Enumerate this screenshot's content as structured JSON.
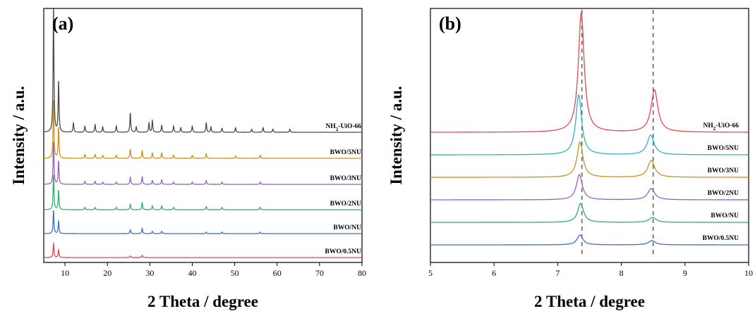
{
  "chart_data": [
    {
      "type": "line",
      "panel_label": "(a)",
      "xlabel": "2 Theta / degree",
      "ylabel": "Intensity / a.u.",
      "xlim": [
        5,
        80
      ],
      "xticks": [
        10,
        20,
        30,
        40,
        50,
        60,
        70,
        80
      ],
      "yticks_shown": false,
      "grid": false,
      "legend": "inline labels at right end of each trace",
      "series": [
        {
          "name": "BWO/0.5NU",
          "color": "#e0464e",
          "peaks": [
            [
              7.3,
              18
            ],
            [
              8.5,
              10
            ],
            [
              25.4,
              2
            ],
            [
              28.2,
              3
            ]
          ]
        },
        {
          "name": "BWO/NU",
          "color": "#3f6fbf",
          "peaks": [
            [
              7.3,
              30
            ],
            [
              8.5,
              16
            ],
            [
              25.4,
              5
            ],
            [
              28.2,
              7
            ],
            [
              30.6,
              3
            ],
            [
              32.8,
              3
            ],
            [
              43.3,
              2
            ],
            [
              47.0,
              2
            ],
            [
              56.0,
              2
            ]
          ]
        },
        {
          "name": "BWO/2NU",
          "color": "#2fae6e",
          "peaks": [
            [
              7.3,
              45
            ],
            [
              8.5,
              25
            ],
            [
              14.7,
              3
            ],
            [
              17.1,
              3
            ],
            [
              22.1,
              3
            ],
            [
              25.4,
              7
            ],
            [
              28.2,
              9
            ],
            [
              30.6,
              5
            ],
            [
              32.8,
              5
            ],
            [
              35.6,
              3
            ],
            [
              43.3,
              4
            ],
            [
              47.0,
              3
            ],
            [
              56.0,
              3
            ]
          ]
        },
        {
          "name": "BWO/3NU",
          "color": "#9a5fc0",
          "peaks": [
            [
              7.3,
              55
            ],
            [
              8.5,
              30
            ],
            [
              14.7,
              4
            ],
            [
              17.1,
              4
            ],
            [
              18.9,
              3
            ],
            [
              22.1,
              3
            ],
            [
              25.4,
              9
            ],
            [
              28.2,
              10
            ],
            [
              30.6,
              5
            ],
            [
              32.8,
              6
            ],
            [
              35.6,
              3
            ],
            [
              40.0,
              3
            ],
            [
              43.3,
              5
            ],
            [
              47.0,
              3
            ],
            [
              56.0,
              3
            ]
          ]
        },
        {
          "name": "BWO/5NU",
          "color": "#c8901c",
          "peaks": [
            [
              7.3,
              75
            ],
            [
              8.5,
              40
            ],
            [
              14.7,
              5
            ],
            [
              17.1,
              5
            ],
            [
              18.9,
              4
            ],
            [
              22.1,
              4
            ],
            [
              25.4,
              12
            ],
            [
              28.2,
              10
            ],
            [
              30.6,
              7
            ],
            [
              32.8,
              7
            ],
            [
              35.6,
              4
            ],
            [
              40.0,
              4
            ],
            [
              43.3,
              6
            ],
            [
              50.2,
              3
            ],
            [
              56.0,
              4
            ]
          ]
        },
        {
          "name": "NH2-UiO-66",
          "color": "#4a4a4a",
          "peaks": [
            [
              7.3,
              160
            ],
            [
              8.5,
              65
            ],
            [
              12.0,
              12
            ],
            [
              14.7,
              8
            ],
            [
              17.1,
              10
            ],
            [
              18.9,
              7
            ],
            [
              22.1,
              8
            ],
            [
              25.4,
              25
            ],
            [
              26.8,
              7
            ],
            [
              29.8,
              12
            ],
            [
              30.6,
              15
            ],
            [
              32.8,
              9
            ],
            [
              35.6,
              8
            ],
            [
              37.3,
              6
            ],
            [
              40.0,
              8
            ],
            [
              43.3,
              12
            ],
            [
              44.4,
              7
            ],
            [
              47.0,
              5
            ],
            [
              50.2,
              6
            ],
            [
              54.0,
              4
            ],
            [
              56.7,
              6
            ],
            [
              59.0,
              4
            ],
            [
              63.0,
              4
            ]
          ]
        }
      ]
    },
    {
      "type": "line",
      "panel_label": "(b)",
      "xlabel": "2 Theta / degree",
      "ylabel": "Intensity / a.u.",
      "xlim": [
        5,
        10
      ],
      "xticks": [
        5,
        6,
        7,
        8,
        9,
        10
      ],
      "yticks_shown": false,
      "grid": false,
      "reference_lines_x": [
        7.38,
        8.5
      ],
      "legend": "inline labels at right end of each trace",
      "series": [
        {
          "name": "BWO/0.5NU",
          "color": "#3f6fbf",
          "peaks": [
            [
              7.35,
              14,
              0.055
            ],
            [
              8.48,
              6,
              0.065
            ]
          ]
        },
        {
          "name": "BWO/NU",
          "color": "#2fae6e",
          "peaks": [
            [
              7.36,
              27,
              0.055
            ],
            [
              8.49,
              7,
              0.065
            ]
          ]
        },
        {
          "name": "BWO/2NU",
          "color": "#9a5fc0",
          "peaks": [
            [
              7.34,
              36,
              0.055
            ],
            [
              8.47,
              16,
              0.065
            ]
          ]
        },
        {
          "name": "BWO/3NU",
          "color": "#c8901c",
          "peaks": [
            [
              7.35,
              50,
              0.055
            ],
            [
              8.47,
              24,
              0.065
            ]
          ]
        },
        {
          "name": "BWO/5NU",
          "color": "#2bb7c2",
          "peaks": [
            [
              7.33,
              85,
              0.055
            ],
            [
              8.46,
              28,
              0.065
            ]
          ]
        },
        {
          "name": "NH2-UiO-66",
          "color": "#e5484d",
          "peaks": [
            [
              7.37,
              170,
              0.055
            ],
            [
              8.52,
              60,
              0.065
            ]
          ]
        }
      ]
    }
  ]
}
